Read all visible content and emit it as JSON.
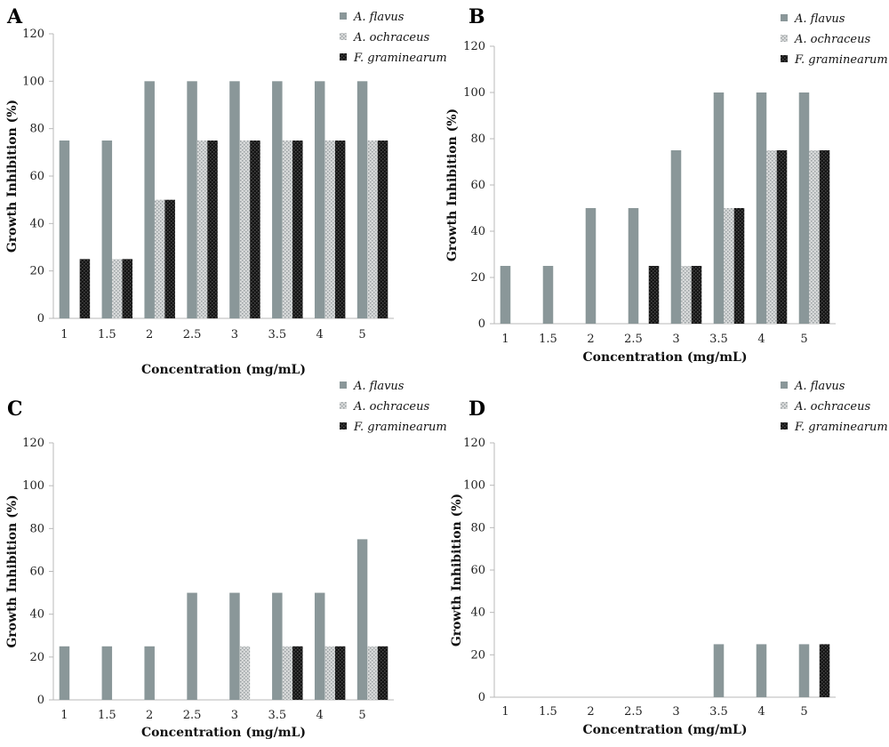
{
  "colors": {
    "flavus": "#8a9799",
    "ochraceus_bg": "#d7d9d9",
    "ochraceus_dot": "#9aa0a2",
    "graminearum_bg": "#151515",
    "graminearum_dot": "#4a4a4a"
  },
  "chart_data": [
    {
      "type": "bar",
      "panel": "A",
      "xlabel": "Concentration (mg/mL)",
      "ylabel": "Growth Inhibition (%)",
      "ylim": [
        0,
        120
      ],
      "yticks": [
        "0",
        "20",
        "40",
        "60",
        "80",
        "100",
        "120"
      ],
      "categories": [
        "1",
        "1.5",
        "2",
        "2.5",
        "3",
        "3.5",
        "4",
        "5"
      ],
      "legend_position": "top-right",
      "series": [
        {
          "name": "A. flavus",
          "values": [
            75,
            75,
            100,
            100,
            100,
            100,
            100,
            100
          ]
        },
        {
          "name": "A. ochraceus",
          "values": [
            0,
            25,
            50,
            75,
            75,
            75,
            75,
            75
          ]
        },
        {
          "name": "F. graminearum",
          "values": [
            25,
            25,
            50,
            75,
            75,
            75,
            75,
            75
          ]
        }
      ]
    },
    {
      "type": "bar",
      "panel": "B",
      "xlabel": "Concentration (mg/mL)",
      "ylabel": "Growth Inhibition (%)",
      "ylim": [
        0,
        120
      ],
      "yticks": [
        "0",
        "20",
        "40",
        "60",
        "80",
        "100",
        "120"
      ],
      "categories": [
        "1",
        "1.5",
        "2",
        "2.5",
        "3",
        "3.5",
        "4",
        "5"
      ],
      "legend_position": "top-right",
      "series": [
        {
          "name": "A. flavus",
          "values": [
            25,
            25,
            50,
            50,
            75,
            100,
            100,
            100
          ]
        },
        {
          "name": "A. ochraceus",
          "values": [
            0,
            0,
            0,
            0,
            25,
            50,
            75,
            75
          ]
        },
        {
          "name": "F. graminearum",
          "values": [
            0,
            0,
            0,
            25,
            25,
            50,
            75,
            75
          ]
        }
      ]
    },
    {
      "type": "bar",
      "panel": "C",
      "xlabel": "Concentration (mg/mL)",
      "ylabel": "Growth Inhibition (%)",
      "ylim": [
        0,
        120
      ],
      "yticks": [
        "0",
        "20",
        "40",
        "60",
        "80",
        "100",
        "120"
      ],
      "categories": [
        "1",
        "1.5",
        "2",
        "2.5",
        "3",
        "3.5",
        "4",
        "5"
      ],
      "legend_position": "top-right",
      "series": [
        {
          "name": "A. flavus",
          "values": [
            25,
            25,
            25,
            50,
            50,
            50,
            50,
            75
          ]
        },
        {
          "name": "A. ochraceus",
          "values": [
            0,
            0,
            0,
            0,
            25,
            25,
            25,
            25
          ]
        },
        {
          "name": "F. graminearum",
          "values": [
            0,
            0,
            0,
            0,
            0,
            25,
            25,
            25
          ]
        }
      ]
    },
    {
      "type": "bar",
      "panel": "D",
      "xlabel": "Concentration (mg/mL)",
      "ylabel": "Growth Inhibition (%)",
      "ylim": [
        0,
        120
      ],
      "yticks": [
        "0",
        "20",
        "40",
        "60",
        "80",
        "100",
        "120"
      ],
      "categories": [
        "1",
        "1.5",
        "2",
        "2.5",
        "3",
        "3.5",
        "4",
        "5"
      ],
      "legend_position": "top-right",
      "series": [
        {
          "name": "A. flavus",
          "values": [
            0,
            0,
            0,
            0,
            0,
            25,
            25,
            25
          ]
        },
        {
          "name": "A. ochraceus",
          "values": [
            0,
            0,
            0,
            0,
            0,
            0,
            0,
            0
          ]
        },
        {
          "name": "F. graminearum",
          "values": [
            0,
            0,
            0,
            0,
            0,
            0,
            0,
            25
          ]
        }
      ]
    }
  ]
}
